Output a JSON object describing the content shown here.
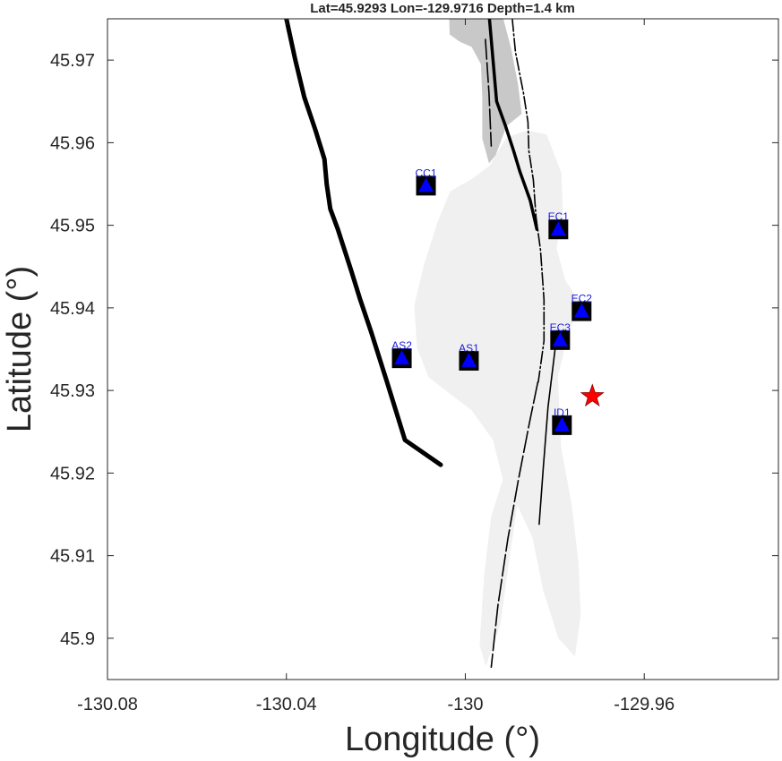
{
  "title": "Lat=45.9293  Lon=-129.9716  Depth=1.4 km",
  "xlabel": "Longitude (°)",
  "ylabel": "Latitude (°)",
  "x_ticks": [
    "-130.08",
    "-130.04",
    "-130",
    "-129.96"
  ],
  "y_ticks": [
    "45.9",
    "45.91",
    "45.92",
    "45.93",
    "45.94",
    "45.95",
    "45.96",
    "45.97"
  ],
  "colors": {
    "station_marker": "#0000ff",
    "station_box": "#000000",
    "station_label": "#1a1ad6",
    "epicenter": "#ff0000",
    "lava_flow_dark": "#c8c8c8",
    "lava_flow_light": "#f0f0f0",
    "fault": "#000000"
  },
  "chart_data": {
    "type": "scatter",
    "xlim": [
      -130.08,
      -129.93
    ],
    "ylim": [
      45.895,
      45.975
    ],
    "grid": false,
    "stations": [
      {
        "name": "CC1",
        "lon": -130.0088,
        "lat": 45.9548
      },
      {
        "name": "EC1",
        "lon": -129.9792,
        "lat": 45.9495
      },
      {
        "name": "EC2",
        "lon": -129.974,
        "lat": 45.9396
      },
      {
        "name": "EC3",
        "lon": -129.9788,
        "lat": 45.9361
      },
      {
        "name": "AS2",
        "lon": -130.0142,
        "lat": 45.9339
      },
      {
        "name": "AS1",
        "lon": -129.9992,
        "lat": 45.9336
      },
      {
        "name": "ID1",
        "lon": -129.9784,
        "lat": 45.9258
      }
    ],
    "epicenter": {
      "lon": -129.9716,
      "lat": 45.9293,
      "depth_km": 1.4
    },
    "faults": [
      [
        [
          -130.04,
          45.975
        ],
        [
          -130.038,
          45.97
        ],
        [
          -130.036,
          45.9655
        ],
        [
          -130.0335,
          45.9615
        ],
        [
          -130.0315,
          45.958
        ],
        [
          -130.031,
          45.955
        ],
        [
          -130.0302,
          45.952
        ],
        [
          -130.0285,
          45.9495
        ],
        [
          -130.0255,
          45.9445
        ],
        [
          -130.0235,
          45.941
        ],
        [
          -130.021,
          45.937
        ],
        [
          -130.0175,
          45.931
        ],
        [
          -130.0135,
          45.924
        ],
        [
          -130.0055,
          45.921
        ]
      ],
      [
        [
          -129.9946,
          45.975
        ],
        [
          -129.9938,
          45.97
        ],
        [
          -129.993,
          45.965
        ],
        [
          -129.991,
          45.962
        ],
        [
          -129.9892,
          45.959
        ],
        [
          -129.9878,
          45.9565
        ],
        [
          -129.9855,
          45.953
        ],
        [
          -129.984,
          45.9495
        ]
      ],
      [
        [
          -129.9895,
          45.975
        ],
        [
          -129.9888,
          45.971
        ],
        [
          -129.987,
          45.966
        ],
        [
          -129.986,
          45.9625
        ],
        [
          -129.9858,
          45.959
        ],
        [
          -129.9848,
          45.9555
        ],
        [
          -129.9842,
          45.951
        ],
        [
          -129.9832,
          45.947
        ],
        [
          -129.9824,
          45.941
        ],
        [
          -129.9824,
          45.936
        ],
        [
          -129.9837,
          45.931
        ]
      ],
      [
        [
          -129.9955,
          45.9725
        ],
        [
          -129.9947,
          45.966
        ],
        [
          -129.9942,
          45.9596
        ]
      ],
      [
        [
          -129.9797,
          45.936
        ],
        [
          -129.9815,
          45.928
        ],
        [
          -129.9826,
          45.9205
        ],
        [
          -129.9835,
          45.9138
        ]
      ],
      [
        [
          -129.9838,
          45.931
        ],
        [
          -129.9857,
          45.926
        ],
        [
          -129.9882,
          45.919
        ],
        [
          -129.9905,
          45.912
        ],
        [
          -129.9927,
          45.904
        ],
        [
          -129.9942,
          45.8965
        ]
      ]
    ],
    "lava_flows": [
      {
        "shade": "dark",
        "outline": [
          [
            -130.0036,
            45.975
          ],
          [
            -129.9915,
            45.975
          ],
          [
            -129.9898,
            45.9715
          ],
          [
            -129.9882,
            45.967
          ],
          [
            -129.9874,
            45.9635
          ],
          [
            -129.9908,
            45.962
          ],
          [
            -129.9932,
            45.9585
          ],
          [
            -129.9947,
            45.9575
          ],
          [
            -129.9962,
            45.9605
          ],
          [
            -129.9962,
            45.9655
          ],
          [
            -129.9965,
            45.9695
          ],
          [
            -129.9986,
            45.9716
          ],
          [
            -130.0012,
            45.9722
          ],
          [
            -130.0035,
            45.9731
          ]
        ]
      },
      {
        "shade": "light",
        "outline": [
          [
            -129.9862,
            45.9615
          ],
          [
            -129.9818,
            45.961
          ],
          [
            -129.9785,
            45.9563
          ],
          [
            -129.9782,
            45.9517
          ],
          [
            -129.9796,
            45.9472
          ],
          [
            -129.9776,
            45.9433
          ],
          [
            -129.9742,
            45.9405
          ],
          [
            -129.9768,
            45.9372
          ],
          [
            -129.9793,
            45.9317
          ],
          [
            -129.9786,
            45.9232
          ],
          [
            -129.9762,
            45.9161
          ],
          [
            -129.9747,
            45.9092
          ],
          [
            -129.9742,
            45.9028
          ],
          [
            -129.9755,
            45.8978
          ],
          [
            -129.9792,
            45.9
          ],
          [
            -129.9826,
            45.9058
          ],
          [
            -129.985,
            45.9122
          ],
          [
            -129.9884,
            45.9161
          ],
          [
            -129.9906,
            45.9078
          ],
          [
            -129.9922,
            45.9016
          ],
          [
            -129.9954,
            45.8966
          ],
          [
            -129.9968,
            45.8992
          ],
          [
            -129.9958,
            45.9076
          ],
          [
            -129.9942,
            45.9148
          ],
          [
            -129.9916,
            45.9192
          ],
          [
            -129.9938,
            45.924
          ],
          [
            -129.9986,
            45.9276
          ],
          [
            -130.0032,
            45.9295
          ],
          [
            -130.0082,
            45.9316
          ],
          [
            -130.0108,
            45.9352
          ],
          [
            -130.0114,
            45.9403
          ],
          [
            -130.0092,
            45.9453
          ],
          [
            -130.0062,
            45.9504
          ],
          [
            -130.0034,
            45.9541
          ],
          [
            -129.9986,
            45.9556
          ],
          [
            -129.9946,
            45.9572
          ],
          [
            -129.9908,
            45.9606
          ]
        ]
      }
    ]
  }
}
